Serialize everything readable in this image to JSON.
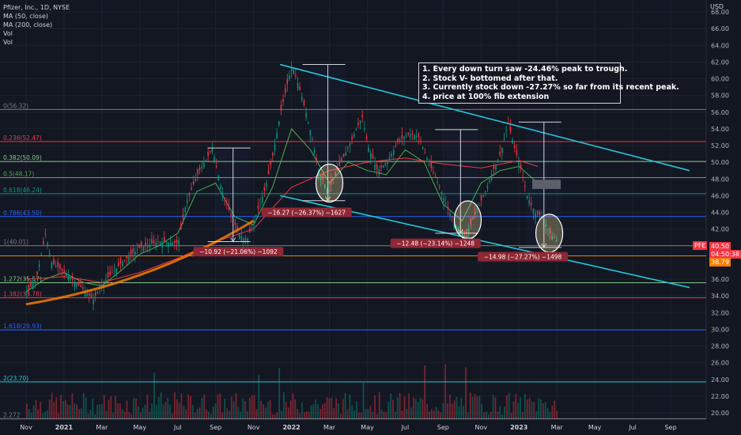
{
  "legend": {
    "title": "Pfizer, Inc., 1D, NYSE",
    "ma50": "MA (50, close)",
    "ma200": "MA (200, close)",
    "vol1": "Vol",
    "vol2": "Vol"
  },
  "notes": [
    "1. Every down turn saw -24.46% peak to trough.",
    "2. Stock V- bottomed after that.",
    "3. Currently stock down -27.27% so far from its recent peak.",
    "4. price at 100% fib extension"
  ],
  "price_tags": {
    "ticker": "PFE",
    "price": "40.50",
    "countdown": "04:50:38",
    "prev": "38.79"
  },
  "chart_data": {
    "type": "line",
    "title": "Pfizer, Inc., 1D, NYSE",
    "ylabel": "USD",
    "ylim": [
      19,
      70
    ],
    "y_ticks": [
      20,
      22,
      24,
      26,
      28,
      30,
      32,
      34,
      36,
      38,
      40,
      42,
      44,
      46,
      48,
      50,
      52,
      54,
      56,
      58,
      60,
      62,
      64,
      66,
      68
    ],
    "x_ticks": [
      {
        "label": "Nov",
        "t": 0
      },
      {
        "label": "2021",
        "t": 2
      },
      {
        "label": "Mar",
        "t": 4
      },
      {
        "label": "May",
        "t": 6
      },
      {
        "label": "Jul",
        "t": 8
      },
      {
        "label": "Sep",
        "t": 10
      },
      {
        "label": "Nov",
        "t": 12
      },
      {
        "label": "2022",
        "t": 14
      },
      {
        "label": "Mar",
        "t": 16
      },
      {
        "label": "May",
        "t": 18
      },
      {
        "label": "Jul",
        "t": 20
      },
      {
        "label": "Sep",
        "t": 22
      },
      {
        "label": "Nov",
        "t": 24
      },
      {
        "label": "2023",
        "t": 26
      },
      {
        "label": "Mar",
        "t": 28
      },
      {
        "label": "May",
        "t": 30
      },
      {
        "label": "Jul",
        "t": 32
      },
      {
        "label": "Sep",
        "t": 34
      }
    ],
    "fib_levels": [
      {
        "label": "0(56.32)",
        "value": 56.32,
        "color": "#787b86"
      },
      {
        "label": "0.236(52.47)",
        "value": 52.47,
        "color": "#f23645"
      },
      {
        "label": "0.382(50.09)",
        "value": 50.09,
        "color": "#81c784"
      },
      {
        "label": "0.5(48.17)",
        "value": 48.17,
        "color": "#4caf50"
      },
      {
        "label": "0.618(46.24)",
        "value": 46.24,
        "color": "#089981"
      },
      {
        "label": "0.786(43.50)",
        "value": 43.5,
        "color": "#2962ff"
      },
      {
        "label": "1(40.01)",
        "value": 40.01,
        "color": "#787b86"
      },
      {
        "label": "1.272(35.57)",
        "value": 35.57,
        "color": "#81c784"
      },
      {
        "label": "1.382(33.78)",
        "value": 33.78,
        "color": "#f23645"
      },
      {
        "label": "1.618(29.93)",
        "value": 29.93,
        "color": "#2962ff"
      },
      {
        "label": "2(23.70)",
        "value": 23.7,
        "color": "#26c6da"
      },
      {
        "label": "2.272",
        "value": 19.3,
        "color": "#787b86"
      }
    ],
    "orange_level": 38.79,
    "series": [
      {
        "name": "MA (50, close)",
        "color": "#4caf50",
        "points": [
          [
            0,
            34.5
          ],
          [
            1,
            36.0
          ],
          [
            2,
            36.8
          ],
          [
            3,
            35.6
          ],
          [
            4,
            35.2
          ],
          [
            5,
            37.0
          ],
          [
            6,
            39.0
          ],
          [
            7,
            40.0
          ],
          [
            8,
            41.5
          ],
          [
            9,
            46.5
          ],
          [
            10,
            47.5
          ],
          [
            11,
            43.5
          ],
          [
            12,
            42.5
          ],
          [
            13,
            47.0
          ],
          [
            14,
            54.0
          ],
          [
            15,
            51.5
          ],
          [
            16,
            47.5
          ],
          [
            17,
            50.0
          ],
          [
            18,
            49.0
          ],
          [
            19,
            48.5
          ],
          [
            20,
            51.5
          ],
          [
            21,
            50.0
          ],
          [
            22,
            45.0
          ],
          [
            23,
            43.0
          ],
          [
            24,
            47.5
          ],
          [
            25,
            49.0
          ],
          [
            26,
            49.5
          ],
          [
            27,
            47.5
          ]
        ]
      },
      {
        "name": "MA (200, close)",
        "color": "#f23645",
        "points": [
          [
            0,
            36.0
          ],
          [
            2,
            36.3
          ],
          [
            4,
            35.6
          ],
          [
            6,
            36.8
          ],
          [
            8,
            38.5
          ],
          [
            10,
            40.5
          ],
          [
            12,
            42.0
          ],
          [
            13,
            44.5
          ],
          [
            14,
            47.0
          ],
          [
            16,
            49.0
          ],
          [
            18,
            50.0
          ],
          [
            20,
            50.5
          ],
          [
            22,
            49.8
          ],
          [
            24,
            49.3
          ],
          [
            26,
            50.2
          ],
          [
            27,
            49.5
          ]
        ]
      },
      {
        "name": "price",
        "points": [
          [
            0,
            34.4
          ],
          [
            0.5,
            36.0
          ],
          [
            1,
            41.5
          ],
          [
            1.3,
            38.0
          ],
          [
            2,
            36.8
          ],
          [
            3,
            34.8
          ],
          [
            3.5,
            33.5
          ],
          [
            4,
            35.5
          ],
          [
            5,
            38.0
          ],
          [
            6,
            39.8
          ],
          [
            7,
            40.5
          ],
          [
            8,
            40.3
          ],
          [
            8.4,
            45.0
          ],
          [
            9,
            48.5
          ],
          [
            9.8,
            51.7
          ],
          [
            10.3,
            46.5
          ],
          [
            10.8,
            43.5
          ],
          [
            11.2,
            41.5
          ],
          [
            11.6,
            40.5
          ],
          [
            12,
            43.0
          ],
          [
            12.6,
            47.0
          ],
          [
            13,
            51.0
          ],
          [
            13.4,
            56.0
          ],
          [
            14,
            61.7
          ],
          [
            14.5,
            58.0
          ],
          [
            15,
            53.5
          ],
          [
            15.4,
            49.0
          ],
          [
            15.9,
            46.5
          ],
          [
            16.3,
            48.5
          ],
          [
            16.8,
            51.0
          ],
          [
            17.2,
            53.0
          ],
          [
            17.7,
            55.5
          ],
          [
            18,
            52.0
          ],
          [
            18.5,
            49.0
          ],
          [
            19,
            50.0
          ],
          [
            19.6,
            52.5
          ],
          [
            20.2,
            53.5
          ],
          [
            20.7,
            53.0
          ],
          [
            21.2,
            50.0
          ],
          [
            21.8,
            47.0
          ],
          [
            22.2,
            44.5
          ],
          [
            22.6,
            42.5
          ],
          [
            23.2,
            41.5
          ],
          [
            23.7,
            44.0
          ],
          [
            24.2,
            46.5
          ],
          [
            24.6,
            49.0
          ],
          [
            25,
            51.0
          ],
          [
            25.4,
            54.8
          ],
          [
            25.7,
            52.0
          ],
          [
            26.1,
            49.0
          ],
          [
            26.4,
            46.0
          ],
          [
            26.8,
            44.0
          ],
          [
            27.2,
            43.5
          ],
          [
            27.6,
            41.5
          ],
          [
            28,
            40.5
          ]
        ]
      }
    ],
    "annotations": [
      {
        "text": "−10.92 (−21.06%) −1092",
        "x": 11.2,
        "y": 39.2
      },
      {
        "text": "−16.27 (−26.37%) −1627",
        "x": 14.8,
        "y": 43.9
      },
      {
        "text": "−12.48 (−23.14%) −1248",
        "x": 21.6,
        "y": 40.2
      },
      {
        "text": "−14.98 (−27.27%) −1498",
        "x": 26.2,
        "y": 38.6
      }
    ],
    "trend_upper": [
      [
        13.4,
        61.7
      ],
      [
        35,
        49.0
      ]
    ],
    "trend_lower": [
      [
        13.4,
        46.0
      ],
      [
        35,
        35.0
      ]
    ],
    "drawdowns": [
      {
        "x": 10.0,
        "top": 51.7,
        "bottom": 40.5
      },
      {
        "x": 15.0,
        "top": 61.7,
        "bottom": 45.4
      },
      {
        "x": 22.0,
        "top": 53.9,
        "bottom": 41.5
      },
      {
        "x": 26.4,
        "top": 54.8,
        "bottom": 39.8
      }
    ],
    "ellipses": [
      {
        "x": 16.0,
        "y": 47.5
      },
      {
        "x": 23.3,
        "y": 43.1
      },
      {
        "x": 27.6,
        "y": 41.5
      }
    ],
    "curve": [
      [
        0,
        33.0
      ],
      [
        4,
        34.5
      ],
      [
        8,
        37.5
      ],
      [
        12,
        43.0
      ]
    ]
  }
}
